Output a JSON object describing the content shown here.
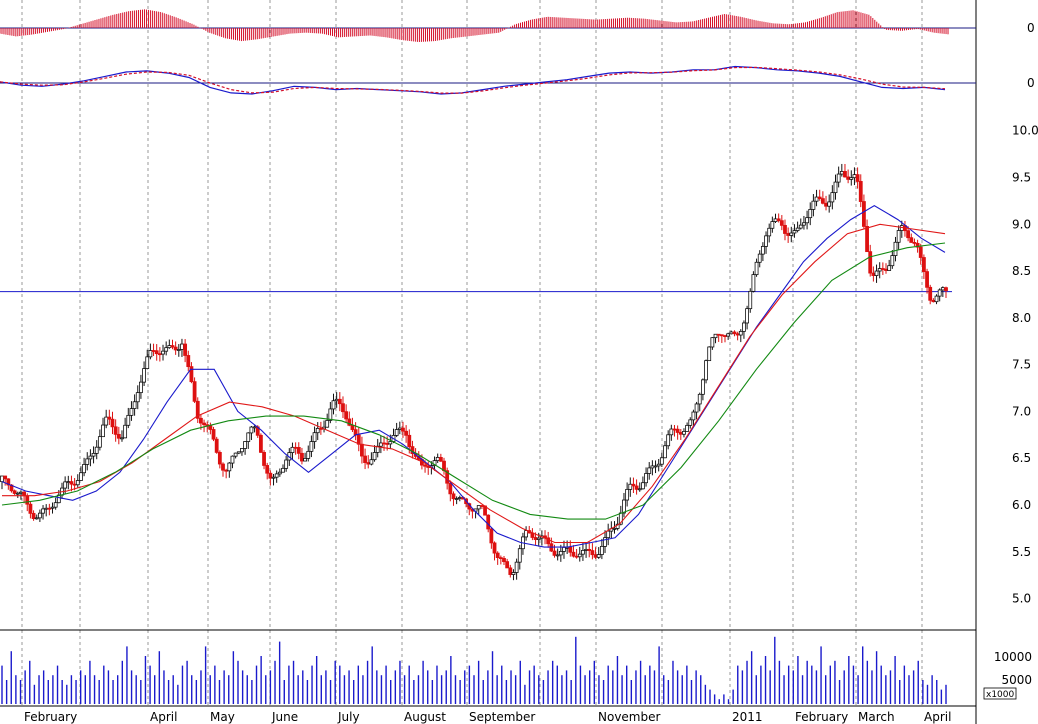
{
  "chart_data": {
    "type": "line",
    "x_axis": {
      "labels": [
        "February",
        "April",
        "May",
        "June",
        "July",
        "August",
        "September",
        "November",
        "2011",
        "February",
        "March",
        "April"
      ]
    },
    "panels": [
      {
        "name": "histogram-oscillator",
        "ylim": [
          -1,
          1
        ],
        "y_ticks": [
          "0"
        ],
        "series": [
          {
            "color": "#d4102a",
            "values": [
              -0.3,
              -0.45,
              -0.35,
              -0.2,
              -0.05,
              0.2,
              0.45,
              0.7,
              0.9,
              1.0,
              0.85,
              0.55,
              0.2,
              -0.25,
              -0.55,
              -0.7,
              -0.6,
              -0.45,
              -0.3,
              -0.25,
              -0.3,
              -0.5,
              -0.45,
              -0.4,
              -0.5,
              -0.65,
              -0.75,
              -0.7,
              -0.55,
              -0.45,
              -0.35,
              -0.25,
              0.2,
              0.45,
              0.6,
              0.55,
              0.5,
              0.45,
              0.5,
              0.55,
              0.5,
              0.4,
              0.3,
              0.35,
              0.55,
              0.75,
              0.6,
              0.4,
              0.25,
              0.2,
              0.3,
              0.55,
              0.85,
              0.95,
              0.7,
              -0.1,
              -0.15,
              -0.05,
              -0.25,
              -0.35
            ]
          }
        ]
      },
      {
        "name": "macd",
        "ylim": [
          -1,
          1
        ],
        "y_ticks": [
          "0"
        ],
        "series": [
          {
            "color": "#1a1acc",
            "values": [
              0.05,
              -0.1,
              -0.15,
              -0.05,
              0.1,
              0.3,
              0.5,
              0.55,
              0.45,
              0.25,
              -0.2,
              -0.45,
              -0.5,
              -0.35,
              -0.15,
              -0.2,
              -0.3,
              -0.25,
              -0.3,
              -0.35,
              -0.4,
              -0.5,
              -0.45,
              -0.3,
              -0.15,
              -0.05,
              0.05,
              0.15,
              0.3,
              0.45,
              0.5,
              0.45,
              0.5,
              0.6,
              0.6,
              0.75,
              0.7,
              0.6,
              0.55,
              0.45,
              0.3,
              0.05,
              -0.2,
              -0.25,
              -0.2,
              -0.3
            ]
          },
          {
            "color": "#d4102a",
            "values": [
              0.05,
              -0.05,
              -0.1,
              -0.08,
              0.05,
              0.22,
              0.4,
              0.5,
              0.48,
              0.35,
              0.0,
              -0.3,
              -0.45,
              -0.42,
              -0.25,
              -0.2,
              -0.25,
              -0.27,
              -0.29,
              -0.33,
              -0.38,
              -0.46,
              -0.46,
              -0.36,
              -0.22,
              -0.1,
              0.0,
              0.1,
              0.22,
              0.37,
              0.46,
              0.47,
              0.49,
              0.56,
              0.59,
              0.7,
              0.71,
              0.65,
              0.58,
              0.5,
              0.37,
              0.18,
              -0.05,
              -0.18,
              -0.2,
              -0.26
            ]
          }
        ]
      },
      {
        "name": "price",
        "ylim": [
          4.75,
          10.2
        ],
        "y_ticks": [
          "10.0",
          "9.5",
          "9.0",
          "8.5",
          "8.0",
          "7.5",
          "7.0",
          "6.5",
          "6.0",
          "5.5",
          "5.0"
        ],
        "support_level": 8.28,
        "series": [
          {
            "type": "candle-close",
            "color": "#dd1010",
            "values": [
              6.25,
              6.05,
              6.0,
              5.95,
              6.05,
              6.35,
              6.6,
              6.8,
              6.75,
              7.3,
              7.55,
              7.65,
              7.85,
              6.9,
              6.7,
              6.45,
              6.6,
              6.75,
              6.3,
              6.5,
              6.45,
              6.85,
              7.05,
              6.9,
              6.6,
              6.55,
              6.65,
              6.85,
              6.4,
              6.4,
              6.2,
              6.05,
              5.85,
              5.5,
              5.35,
              5.6,
              5.65,
              5.6,
              5.4,
              5.45,
              5.65,
              5.75,
              6.15,
              6.4,
              6.5,
              6.75,
              6.95,
              7.55,
              7.8,
              7.85,
              8.3,
              8.85,
              9.1,
              8.9,
              9.1,
              9.3,
              9.6,
              9.4,
              8.5,
              8.6,
              8.85,
              8.8,
              8.3,
              8.2
            ]
          },
          {
            "type": "moving-average",
            "color": "#1a1acc",
            "values": [
              6.25,
              6.15,
              6.1,
              6.05,
              6.15,
              6.35,
              6.7,
              7.1,
              7.45,
              7.45,
              7.0,
              6.8,
              6.55,
              6.35,
              6.55,
              6.75,
              6.8,
              6.65,
              6.45,
              6.25,
              5.95,
              5.7,
              5.6,
              5.55,
              5.55,
              5.6,
              5.65,
              5.9,
              6.3,
              6.7,
              7.1,
              7.5,
              7.9,
              8.25,
              8.6,
              8.85,
              9.05,
              9.2,
              9.05,
              8.85,
              8.7
            ]
          },
          {
            "type": "moving-average",
            "color": "#e01818",
            "values": [
              6.1,
              6.1,
              6.15,
              6.25,
              6.45,
              6.7,
              6.95,
              7.1,
              7.05,
              6.95,
              6.8,
              6.65,
              6.6,
              6.45,
              6.2,
              5.95,
              5.75,
              5.6,
              5.6,
              5.8,
              6.2,
              6.7,
              7.25,
              7.8,
              8.25,
              8.6,
              8.9,
              9.0,
              8.95,
              8.9
            ]
          },
          {
            "type": "moving-average",
            "color": "#138a13",
            "values": [
              6.0,
              6.05,
              6.15,
              6.35,
              6.6,
              6.8,
              6.9,
              6.95,
              6.95,
              6.9,
              6.75,
              6.55,
              6.3,
              6.05,
              5.9,
              5.85,
              5.85,
              6.0,
              6.4,
              6.9,
              7.45,
              7.95,
              8.4,
              8.65,
              8.75,
              8.8
            ]
          }
        ]
      },
      {
        "name": "volume",
        "ylim": [
          0,
          15000
        ],
        "y_ticks": [
          "10000",
          "5000"
        ],
        "unit_label": "x1000",
        "series": [
          {
            "color": "#1a1acc",
            "values": [
              8,
              5,
              11,
              6,
              5,
              7,
              9,
              4,
              6,
              7,
              5,
              6,
              8,
              5,
              4,
              6,
              5,
              7,
              6,
              9,
              6,
              5,
              8,
              7,
              5,
              6,
              9,
              12,
              7,
              6,
              5,
              10,
              8,
              6,
              11,
              7,
              5,
              6,
              4,
              8,
              9,
              6,
              5,
              7,
              12,
              6,
              8,
              5,
              7,
              6,
              11,
              9,
              7,
              6,
              5,
              8,
              10,
              6,
              7,
              9,
              13,
              5,
              8,
              9,
              6,
              7,
              5,
              8,
              10,
              6,
              7,
              5,
              9,
              8,
              6,
              7,
              5,
              8,
              6,
              9,
              12,
              7,
              6,
              8,
              5,
              7,
              9,
              6,
              8,
              5,
              6,
              9,
              7,
              5,
              8,
              6,
              7,
              10,
              6,
              5,
              7,
              8,
              6,
              9,
              5,
              7,
              11,
              6,
              8,
              5,
              7,
              6,
              9,
              4,
              7,
              8,
              6,
              5,
              7,
              9,
              8,
              6,
              7,
              5,
              14,
              8,
              6,
              7,
              9,
              6,
              5,
              8,
              7,
              10,
              6,
              8,
              5,
              7,
              9,
              6,
              8,
              7,
              12,
              6,
              5,
              9,
              7,
              6,
              8,
              5,
              7,
              6,
              4,
              3,
              2,
              1,
              2,
              1,
              3,
              8,
              7,
              9,
              11,
              6,
              8,
              10,
              7,
              14,
              9,
              6,
              8,
              7,
              10,
              6,
              9,
              8,
              7,
              12,
              6,
              8,
              9,
              5,
              7,
              10,
              8,
              6,
              12,
              9,
              7,
              11,
              8,
              6,
              7,
              10,
              5,
              8,
              6,
              7,
              9,
              5,
              4,
              6,
              5,
              3,
              4
            ]
          }
        ]
      }
    ],
    "grid": "vertical-dashed"
  }
}
